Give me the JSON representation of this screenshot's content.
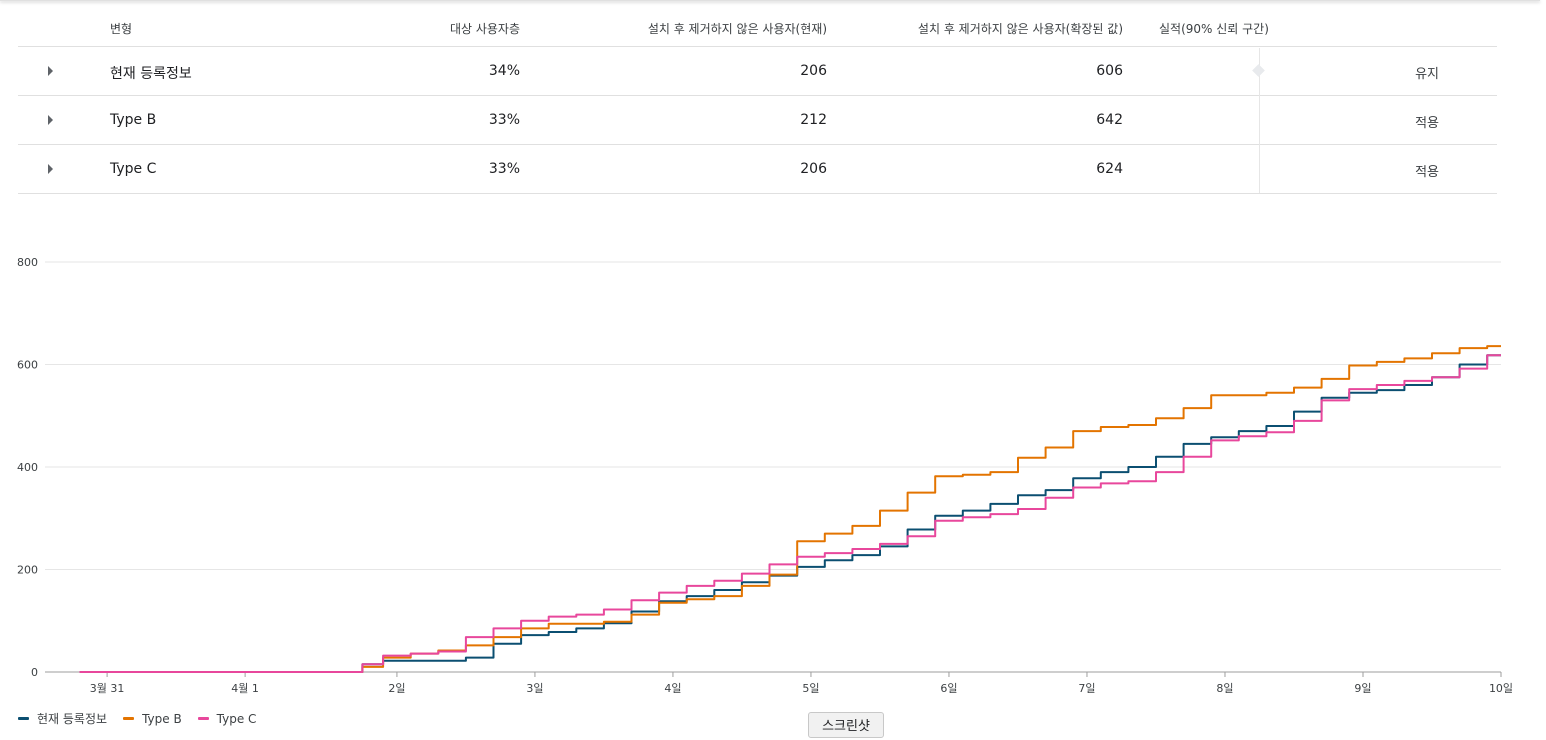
{
  "table": {
    "headers": {
      "variant": "변형",
      "audience": "대상 사용자층",
      "retained_current": "설치 후 제거하지 않은 사용자(현재)",
      "retained_scaled": "설치 후 제거하지 않은 사용자(확장된 값)",
      "performance": "실적(90% 신뢰 구간)"
    },
    "rows": [
      {
        "variant": "현재 등록정보",
        "audience": "34%",
        "retained_current": "206",
        "retained_scaled": "606",
        "status": "유지"
      },
      {
        "variant": "Type B",
        "audience": "33%",
        "retained_current": "212",
        "retained_scaled": "642",
        "status": "적용"
      },
      {
        "variant": "Type C",
        "audience": "33%",
        "retained_current": "206",
        "retained_scaled": "624",
        "status": "적용"
      }
    ]
  },
  "colors": {
    "series_current": "#0b4f71",
    "series_b": "#e37400",
    "series_c": "#e8479c",
    "grid": "#e6e6e6",
    "axis": "#9e9e9e"
  },
  "chart_data": {
    "type": "line",
    "title": "",
    "xlabel": "",
    "ylabel": "",
    "ylim": [
      0,
      800
    ],
    "yticks": [
      "0",
      "200",
      "400",
      "600",
      "800"
    ],
    "xticks": [
      "3월 31",
      "4월 1",
      "2일",
      "3일",
      "4일",
      "5일",
      "6일",
      "7일",
      "8일",
      "9일",
      "10일"
    ],
    "grid": true,
    "legend": "bottom-left",
    "x": [
      -0.3,
      1.7,
      1.8,
      2.0,
      2.2,
      2.4,
      2.6,
      2.8,
      3.0,
      3.2,
      3.4,
      3.6,
      3.8,
      4.0,
      4.2,
      4.4,
      4.6,
      4.8,
      5.0,
      5.2,
      5.4,
      5.6,
      5.8,
      6.0,
      6.2,
      6.4,
      6.6,
      6.8,
      7.0,
      7.2,
      7.4,
      7.6,
      7.8,
      8.0,
      8.2,
      8.4,
      8.6,
      8.8,
      9.0,
      9.2,
      9.4,
      9.6,
      9.8,
      10.0
    ],
    "series": [
      {
        "name": "현재 등록정보",
        "values": [
          0,
          0,
          15,
          22,
          22,
          22,
          28,
          55,
          72,
          78,
          85,
          95,
          118,
          138,
          148,
          160,
          175,
          188,
          205,
          218,
          228,
          245,
          278,
          305,
          315,
          328,
          345,
          355,
          378,
          390,
          400,
          420,
          445,
          458,
          470,
          480,
          508,
          535,
          545,
          550,
          560,
          575,
          600,
          618
        ]
      },
      {
        "name": "Type B",
        "values": [
          0,
          0,
          10,
          28,
          36,
          42,
          52,
          68,
          85,
          94,
          94,
          98,
          112,
          135,
          142,
          148,
          168,
          190,
          255,
          270,
          285,
          315,
          350,
          382,
          385,
          390,
          418,
          438,
          470,
          478,
          482,
          495,
          515,
          540,
          540,
          545,
          555,
          572,
          598,
          605,
          612,
          622,
          632,
          636
        ]
      },
      {
        "name": "Type C",
        "values": [
          0,
          0,
          15,
          32,
          36,
          40,
          68,
          85,
          100,
          108,
          112,
          122,
          140,
          155,
          168,
          178,
          192,
          210,
          225,
          232,
          240,
          250,
          265,
          295,
          302,
          308,
          318,
          340,
          360,
          368,
          372,
          390,
          420,
          452,
          460,
          468,
          490,
          530,
          552,
          560,
          568,
          575,
          592,
          618
        ]
      }
    ]
  },
  "legend": {
    "items": [
      "현재 등록정보",
      "Type B",
      "Type C"
    ]
  },
  "ui": {
    "screenshot_button": "스크린샷"
  }
}
